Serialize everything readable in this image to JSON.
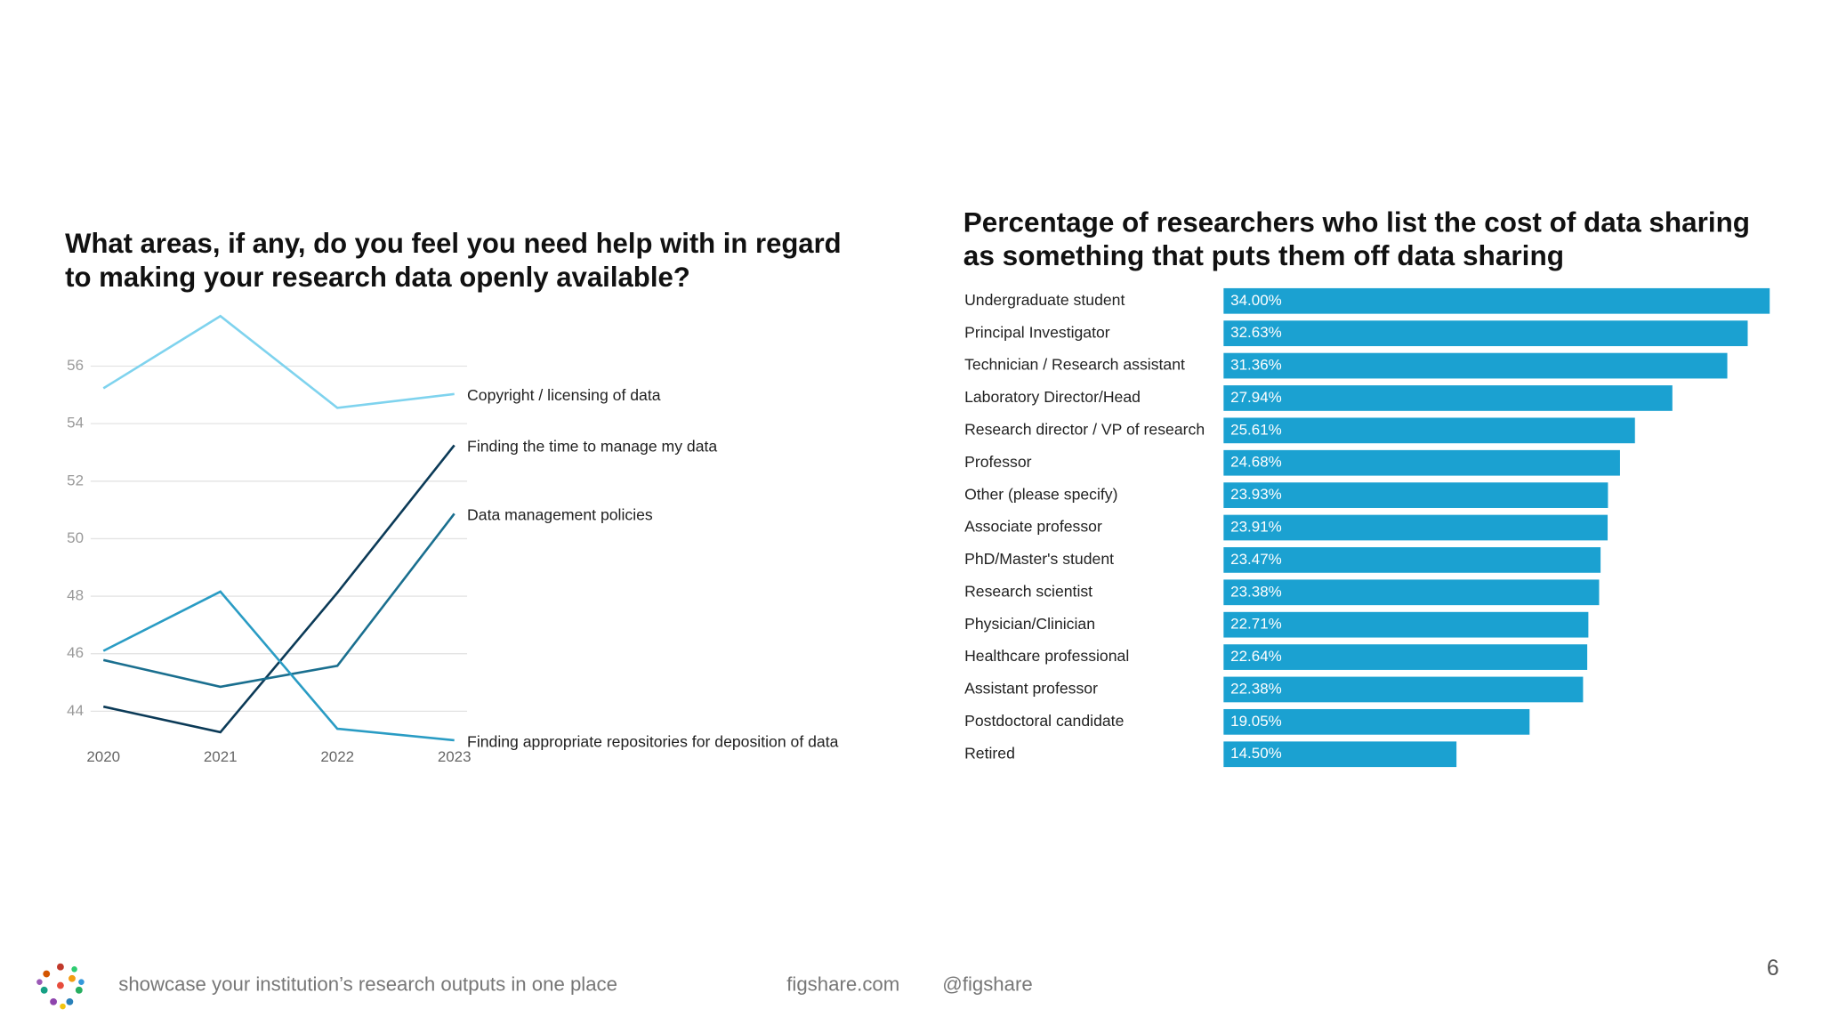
{
  "chart_data": [
    {
      "type": "line",
      "title": [
        "What areas, if any, do you feel you need help with in regard",
        "to making your research data openly available?"
      ],
      "categories": [
        "2020",
        "2021",
        "2022",
        "2023"
      ],
      "ylim": [
        42.8,
        58
      ],
      "yticks": [
        44,
        46,
        48,
        50,
        52,
        54,
        56
      ],
      "grid": true,
      "series": [
        {
          "name": "Copyright / licensing of data",
          "color": "#7fd3ee",
          "values": [
            55.23,
            57.74,
            54.55,
            55.03
          ]
        },
        {
          "name": "Finding the time to manage my data",
          "color": "#0b3a57",
          "values": [
            44.16,
            43.27,
            48.12,
            53.25
          ]
        },
        {
          "name": "Data management policies",
          "color": "#1a6f8f",
          "values": [
            45.78,
            44.85,
            45.58,
            50.87
          ]
        },
        {
          "name": "Finding appropriate repositories for deposition of data",
          "color": "#2a9cc4",
          "values": [
            46.1,
            48.16,
            43.39,
            42.99
          ]
        }
      ]
    },
    {
      "type": "hbar",
      "title": [
        "Percentage of researchers who list the cost of data sharing",
        "as something that puts them off data sharing"
      ],
      "categories": [
        "Undergraduate student",
        "Principal Investigator",
        "Technician / Research assistant",
        "Laboratory Director/Head",
        "Research director / VP of research",
        "Professor",
        "Other (please specify)",
        "Associate professor",
        "PhD/Master's student",
        "Research scientist",
        "Physician/Clinician",
        "Healthcare professional",
        "Assistant professor",
        "Postdoctoral candidate",
        "Retired"
      ],
      "values": [
        34.0,
        32.63,
        31.36,
        27.94,
        25.61,
        24.68,
        23.93,
        23.91,
        23.47,
        23.38,
        22.71,
        22.64,
        22.38,
        19.05,
        14.5
      ],
      "value_labels": [
        "34.00%",
        "32.63%",
        "31.36%",
        "27.94%",
        "25.61%",
        "24.68%",
        "23.93%",
        "23.91%",
        "23.47%",
        "23.38%",
        "22.71%",
        "22.64%",
        "22.38%",
        "19.05%",
        "14.50%"
      ],
      "xlim": [
        0,
        34
      ],
      "color": "#1ba1d1"
    }
  ],
  "footer": {
    "tagline": "showcase your institution’s research outputs in one place",
    "site": "figshare.com",
    "handle": "@figshare",
    "page_number": "6"
  }
}
